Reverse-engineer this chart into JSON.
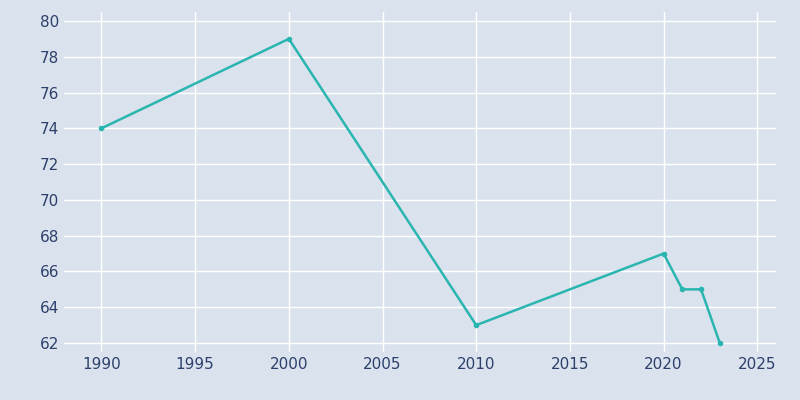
{
  "years": [
    1990,
    2000,
    2010,
    2020,
    2021,
    2022,
    2023
  ],
  "population": [
    74,
    79,
    63,
    67,
    65,
    65,
    62
  ],
  "line_color": "#2ab5b0",
  "bg_color": "#dae3ed",
  "plot_bg_color": "#dae3ed",
  "grid_color": "#ffffff",
  "tick_label_color": "#2d3f6b",
  "xlim": [
    1988,
    2026
  ],
  "ylim": [
    61.5,
    80.5
  ],
  "yticks": [
    62,
    64,
    66,
    68,
    70,
    72,
    74,
    76,
    78,
    80
  ],
  "xticks": [
    1990,
    1995,
    2000,
    2005,
    2010,
    2015,
    2020,
    2025
  ],
  "linewidth": 1.8,
  "tick_fontsize": 11
}
